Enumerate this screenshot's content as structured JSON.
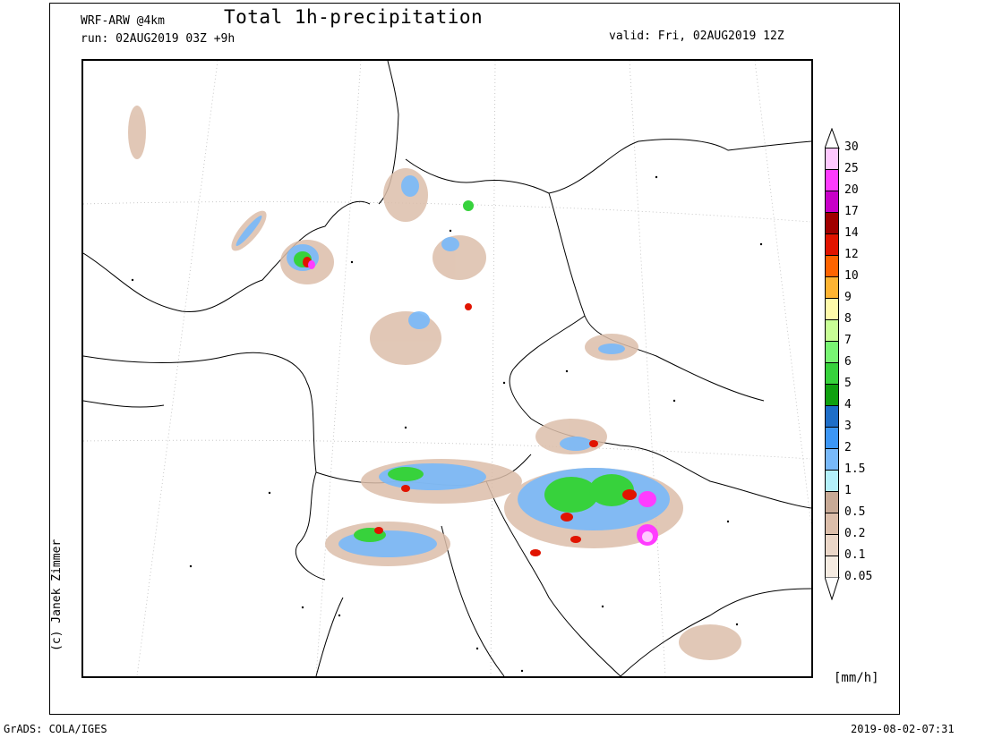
{
  "header": {
    "model": "WRF-ARW @4km",
    "run": "run: 02AUG2019 03Z +9h",
    "title": "Total 1h-precipitation",
    "valid": "valid: Fri, 02AUG2019 12Z"
  },
  "credit": "(c) Janek Zimmer",
  "footer": {
    "left": "GrADS: COLA/IGES",
    "right": "2019-08-02-07:31"
  },
  "legend": {
    "unit": "[mm/h]",
    "levels": [
      "30",
      "25",
      "20",
      "17",
      "14",
      "12",
      "10",
      "9",
      "8",
      "7",
      "6",
      "5",
      "4",
      "3",
      "2",
      "1.5",
      "1",
      "0.5",
      "0.2",
      "0.1",
      "0.05"
    ],
    "colors": [
      "#ffc8ff",
      "#ff3cff",
      "#c800c8",
      "#a00000",
      "#e11400",
      "#ff6400",
      "#ffb432",
      "#fffaaa",
      "#c8ff96",
      "#78f573",
      "#37d23c",
      "#0fa00f",
      "#1e6ec8",
      "#3c96f5",
      "#78b9fa",
      "#b4f0fa",
      "#c8aa96",
      "#dcbeaa",
      "#ebd7c8",
      "#f5ebe1"
    ]
  }
}
